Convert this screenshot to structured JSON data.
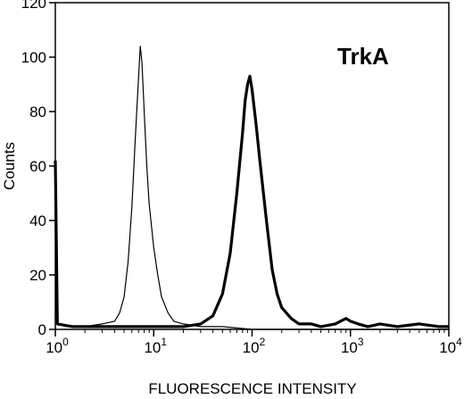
{
  "chart_data": {
    "type": "line",
    "title": "TrkA",
    "xlabel": "FLUORESCENCE INTENSITY",
    "ylabel": "Counts",
    "x_scale": "log",
    "xlim": [
      1,
      10000
    ],
    "ylim": [
      0,
      120
    ],
    "grid": false,
    "x_ticks": [
      {
        "value": 1,
        "base": "10",
        "exp": "0"
      },
      {
        "value": 10,
        "base": "10",
        "exp": "1"
      },
      {
        "value": 100,
        "base": "10",
        "exp": "2"
      },
      {
        "value": 1000,
        "base": "10",
        "exp": "3"
      },
      {
        "value": 10000,
        "base": "10",
        "exp": "4"
      }
    ],
    "y_ticks": [
      0,
      20,
      40,
      60,
      80,
      100,
      120
    ],
    "series": [
      {
        "style": "thin",
        "color": "#000000",
        "points": [
          [
            1.0,
            62
          ],
          [
            1.05,
            2
          ],
          [
            1.3,
            1
          ],
          [
            2,
            1
          ],
          [
            3,
            2
          ],
          [
            4,
            3
          ],
          [
            4.5,
            6
          ],
          [
            5,
            12
          ],
          [
            5.5,
            25
          ],
          [
            6,
            45
          ],
          [
            6.5,
            70
          ],
          [
            7,
            92
          ],
          [
            7.3,
            104
          ],
          [
            7.6,
            98
          ],
          [
            8,
            80
          ],
          [
            8.5,
            60
          ],
          [
            9,
            46
          ],
          [
            10,
            30
          ],
          [
            11,
            20
          ],
          [
            12,
            12
          ],
          [
            14,
            6
          ],
          [
            16,
            3
          ],
          [
            20,
            2
          ],
          [
            30,
            1
          ],
          [
            50,
            1
          ],
          [
            100,
            0
          ],
          [
            500,
            0
          ],
          [
            1000,
            0
          ],
          [
            10000,
            0
          ]
        ]
      },
      {
        "style": "thick",
        "color": "#000000",
        "points": [
          [
            1.0,
            62
          ],
          [
            1.05,
            2
          ],
          [
            1.5,
            1
          ],
          [
            3,
            1
          ],
          [
            10,
            1
          ],
          [
            20,
            1
          ],
          [
            30,
            2
          ],
          [
            40,
            5
          ],
          [
            50,
            13
          ],
          [
            60,
            28
          ],
          [
            70,
            50
          ],
          [
            80,
            72
          ],
          [
            85,
            84
          ],
          [
            90,
            90
          ],
          [
            95,
            93
          ],
          [
            100,
            88
          ],
          [
            110,
            75
          ],
          [
            120,
            62
          ],
          [
            140,
            40
          ],
          [
            160,
            22
          ],
          [
            180,
            13
          ],
          [
            200,
            8
          ],
          [
            250,
            4
          ],
          [
            300,
            2
          ],
          [
            400,
            2
          ],
          [
            500,
            1
          ],
          [
            700,
            2
          ],
          [
            900,
            4
          ],
          [
            1000,
            3
          ],
          [
            1200,
            2
          ],
          [
            1500,
            1
          ],
          [
            2000,
            2
          ],
          [
            3000,
            1
          ],
          [
            5000,
            2
          ],
          [
            8000,
            1
          ],
          [
            10000,
            1
          ]
        ]
      }
    ]
  }
}
